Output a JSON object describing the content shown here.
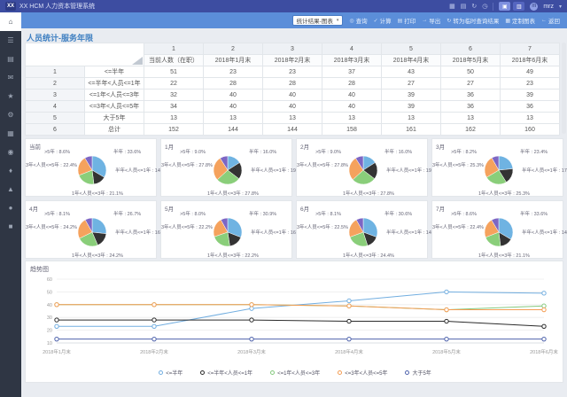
{
  "app": {
    "logo": "XX",
    "title": "XX HCM 人力资本管理系统"
  },
  "navbar": {
    "icons": [
      {
        "name": "apps-grid-icon",
        "glyph": "▦"
      },
      {
        "name": "layout-icon",
        "glyph": "▤"
      },
      {
        "name": "refresh-icon",
        "glyph": "↻"
      },
      {
        "name": "clock-icon",
        "glyph": "◷"
      }
    ],
    "buttons": [
      {
        "name": "workspace-button",
        "glyph": "▣",
        "lit": true
      },
      {
        "name": "profile-card-button",
        "glyph": "▥",
        "lit": false
      }
    ],
    "user": {
      "name": "mrz",
      "avatar_initial": "m",
      "caret": "▾"
    }
  },
  "toolbar": {
    "view_dropdown": {
      "value": "统计结果-图表",
      "caret": "▾"
    },
    "actions": [
      {
        "icon": "search-icon",
        "glyph": "◎",
        "label": "查询"
      },
      {
        "icon": "calculate-icon",
        "glyph": "✓",
        "label": "计算"
      },
      {
        "icon": "print-icon",
        "glyph": "▤",
        "label": "打印"
      },
      {
        "icon": "export-icon",
        "glyph": "→",
        "label": "导出"
      },
      {
        "icon": "convert-icon",
        "glyph": "↻",
        "label": "转为临时查询结果"
      },
      {
        "icon": "custom-chart-icon",
        "glyph": "▦",
        "label": "定制图表"
      },
      {
        "icon": "back-icon",
        "glyph": "←",
        "label": "返回"
      }
    ]
  },
  "sidebar": {
    "items": [
      {
        "name": "sidebar-item-home",
        "glyph": "⌂",
        "active": true
      },
      {
        "name": "sidebar-item-menu",
        "glyph": "☰",
        "active": false
      },
      {
        "name": "sidebar-item-documents",
        "glyph": "▤",
        "active": false
      },
      {
        "name": "sidebar-item-mail",
        "glyph": "✉",
        "active": false
      },
      {
        "name": "sidebar-item-favorites",
        "glyph": "★",
        "active": false
      },
      {
        "name": "sidebar-item-settings",
        "glyph": "⚙",
        "active": false
      },
      {
        "name": "sidebar-item-apps",
        "glyph": "▦",
        "active": false
      },
      {
        "name": "sidebar-item-reports",
        "glyph": "◉",
        "active": false
      },
      {
        "name": "sidebar-item-modules",
        "glyph": "♦",
        "active": false
      },
      {
        "name": "sidebar-item-analytics",
        "glyph": "▲",
        "active": false
      },
      {
        "name": "sidebar-item-records",
        "glyph": "●",
        "active": false
      },
      {
        "name": "sidebar-item-more",
        "glyph": "■",
        "active": false
      }
    ]
  },
  "page": {
    "title": "人员统计-服务年限"
  },
  "table": {
    "col_indices": [
      "1",
      "2",
      "3",
      "4",
      "5",
      "6",
      "7"
    ],
    "columns": [
      "当前人数（在职）",
      "2018年1月末",
      "2018年2月末",
      "2018年3月末",
      "2018年4月末",
      "2018年5月末",
      "2018年6月末"
    ],
    "rows": [
      {
        "idx": "1",
        "label": "<=半年",
        "values": [
          51,
          23,
          23,
          37,
          43,
          50,
          49
        ],
        "is_total": false
      },
      {
        "idx": "2",
        "label": "<=半年<人员<=1年",
        "values": [
          22,
          28,
          28,
          28,
          27,
          27,
          23
        ],
        "is_total": false
      },
      {
        "idx": "3",
        "label": "<=1年<人员<=3年",
        "values": [
          32,
          40,
          40,
          40,
          39,
          36,
          39
        ],
        "is_total": false
      },
      {
        "idx": "4",
        "label": "<=3年<人员<=5年",
        "values": [
          34,
          40,
          40,
          40,
          39,
          36,
          36
        ],
        "is_total": false
      },
      {
        "idx": "5",
        "label": "大于5年",
        "values": [
          13,
          13,
          13,
          13,
          13,
          13,
          13
        ],
        "is_total": false
      },
      {
        "idx": "6",
        "label": "总计",
        "values": [
          152,
          144,
          144,
          158,
          161,
          162,
          160
        ],
        "is_total": true
      }
    ]
  },
  "pies": {
    "slice_names": [
      "半年",
      "半年<人员<=1年",
      "1年<人员<=3年",
      "3年<人员<=5年",
      ">5年"
    ],
    "colors": [
      "#6fb3e2",
      "#333333",
      "#8ace7a",
      "#f5a25d",
      "#7d66c4"
    ],
    "panels": [
      {
        "title": "当前",
        "pcts": [
          33.6,
          14.5,
          21.1,
          22.4,
          8.6
        ]
      },
      {
        "title": "1月",
        "pcts": [
          16.0,
          19.4,
          27.8,
          27.8,
          9.0
        ]
      },
      {
        "title": "2月",
        "pcts": [
          16.0,
          19.4,
          27.8,
          27.8,
          9.0
        ]
      },
      {
        "title": "3月",
        "pcts": [
          23.4,
          17.7,
          25.3,
          25.3,
          8.2
        ]
      },
      {
        "title": "4月",
        "pcts": [
          26.7,
          16.8,
          24.2,
          24.2,
          8.1
        ]
      },
      {
        "title": "5月",
        "pcts": [
          30.9,
          16.7,
          22.2,
          22.2,
          8.0
        ]
      },
      {
        "title": "6月",
        "pcts": [
          30.6,
          14.4,
          24.4,
          22.5,
          8.1
        ]
      },
      {
        "title": "7月",
        "pcts": [
          33.6,
          14.5,
          21.1,
          22.4,
          8.6
        ]
      }
    ]
  },
  "chart_data": {
    "type": "line",
    "title": "趋势图",
    "x": [
      "2018年1月末",
      "2018年2月末",
      "2018年3月末",
      "2018年4月末",
      "2018年5月末",
      "2018年6月末"
    ],
    "series": [
      {
        "name": "<=半年",
        "color": "#72aee0",
        "values": [
          23,
          23,
          37,
          43,
          50,
          49
        ]
      },
      {
        "name": "<=半年<人员<=1年",
        "color": "#2b2b2b",
        "values": [
          28,
          28,
          28,
          27,
          27,
          23
        ]
      },
      {
        "name": "<=1年<人员<=3年",
        "color": "#85c97e",
        "values": [
          40,
          40,
          40,
          39,
          36,
          39
        ]
      },
      {
        "name": "<=3年<人员<=5年",
        "color": "#f49d54",
        "values": [
          40,
          40,
          40,
          39,
          36,
          36
        ]
      },
      {
        "name": "大于5年",
        "color": "#4f63ac",
        "values": [
          13,
          13,
          13,
          13,
          13,
          13
        ]
      }
    ],
    "y_ticks": [
      10,
      20,
      30,
      40,
      50,
      60
    ],
    "ylim": [
      10,
      60
    ],
    "grid": true,
    "legend_position": "bottom"
  }
}
